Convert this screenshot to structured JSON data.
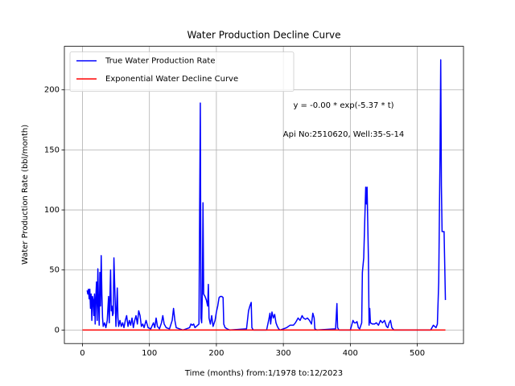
{
  "chart_data": {
    "type": "line",
    "title": "Water Production Decline Curve",
    "xlabel": "Time (months) from:1/1978 to:12/2023",
    "ylabel": "Water Production Rate (bbl/month)",
    "annotations": [
      "y = -0.00 * exp(-5.37 * t)",
      "Api No:2510620, Well:35-S-14"
    ],
    "xlim": [
      -27,
      569
    ],
    "ylim": [
      -11.25,
      236.25
    ],
    "xticks": [
      0,
      100,
      200,
      300,
      400,
      500
    ],
    "yticks": [
      0,
      50,
      100,
      150,
      200
    ],
    "grid": true,
    "legend": "upper left",
    "series": [
      {
        "name": "True Water Production Rate",
        "color": "#0000ff",
        "x": [
          7,
          8,
          9,
          10,
          11,
          12,
          13,
          14,
          15,
          16,
          17,
          18,
          19,
          20,
          21,
          22,
          23,
          24,
          25,
          26,
          27,
          28,
          29,
          30,
          31,
          33,
          35,
          37,
          39,
          40,
          41,
          42,
          43,
          44,
          45,
          46,
          47,
          48,
          49,
          50,
          51,
          52,
          53,
          54,
          56,
          58,
          60,
          62,
          64,
          66,
          68,
          70,
          72,
          74,
          76,
          78,
          80,
          82,
          84,
          86,
          88,
          90,
          92,
          95,
          98,
          102,
          106,
          108,
          110,
          112,
          115,
          118,
          120,
          122,
          125,
          130,
          134,
          136,
          138,
          140,
          145,
          150,
          160,
          162,
          164,
          166,
          168,
          172,
          174,
          175,
          176,
          177,
          178,
          179,
          180,
          181,
          183,
          185,
          187,
          188,
          189,
          191,
          193,
          195,
          198,
          200,
          202,
          204,
          206,
          208,
          210,
          211,
          213,
          216,
          220,
          245,
          248,
          250,
          252,
          253,
          255,
          275,
          278,
          280,
          281,
          283,
          285,
          287,
          289,
          291,
          293,
          295,
          305,
          310,
          315,
          318,
          320,
          322,
          325,
          328,
          330,
          333,
          336,
          339,
          342,
          344,
          346,
          347,
          350,
          378,
          380,
          381,
          383,
          400,
          404,
          406,
          408,
          410,
          412,
          414,
          417,
          418,
          420,
          422,
          423,
          424,
          425,
          426,
          427,
          428,
          429,
          430,
          433,
          436,
          439,
          442,
          445,
          448,
          451,
          454,
          456,
          458,
          460,
          462,
          465,
          520,
          524,
          526,
          528,
          530,
          532,
          534,
          535,
          536,
          537,
          540,
          542
        ],
        "values": [
          33,
          30,
          34,
          26,
          34,
          18,
          30,
          8,
          28,
          25,
          12,
          30,
          5,
          28,
          40,
          8,
          51,
          22,
          4,
          48,
          20,
          62,
          30,
          10,
          3,
          6,
          2,
          8,
          28,
          6,
          26,
          50,
          16,
          20,
          12,
          14,
          60,
          40,
          22,
          3,
          18,
          35,
          10,
          3,
          8,
          3,
          6,
          2,
          8,
          12,
          3,
          8,
          4,
          10,
          2,
          8,
          12,
          5,
          16,
          12,
          3,
          5,
          2,
          8,
          2,
          1,
          6,
          2,
          10,
          3,
          1,
          6,
          12,
          5,
          2,
          1,
          8,
          18,
          8,
          2,
          1,
          0,
          2,
          5,
          4,
          5,
          2,
          4,
          5,
          100,
          189,
          10,
          6,
          30,
          106,
          30,
          28,
          25,
          20,
          38,
          10,
          5,
          12,
          3,
          8,
          15,
          20,
          27,
          28,
          28,
          27,
          5,
          2,
          1,
          0,
          1,
          16,
          20,
          23,
          2,
          0,
          0,
          8,
          14,
          5,
          15,
          10,
          13,
          6,
          3,
          1,
          0,
          2,
          4,
          4,
          6,
          8,
          10,
          8,
          12,
          10,
          9,
          10,
          8,
          5,
          14,
          10,
          1,
          0,
          1,
          22,
          2,
          0,
          0,
          8,
          6,
          6,
          7,
          2,
          1,
          6,
          48,
          60,
          100,
          119,
          105,
          119,
          90,
          60,
          4,
          18,
          6,
          5,
          5,
          6,
          4,
          8,
          6,
          8,
          3,
          2,
          6,
          8,
          2,
          0,
          0,
          4,
          3,
          2,
          5,
          40,
          150,
          225,
          120,
          82,
          82,
          25
        ]
      },
      {
        "name": "Exponential Water Decline Curve",
        "color": "#ff0000",
        "x": [
          0,
          542
        ],
        "values": [
          0,
          0
        ]
      }
    ]
  }
}
